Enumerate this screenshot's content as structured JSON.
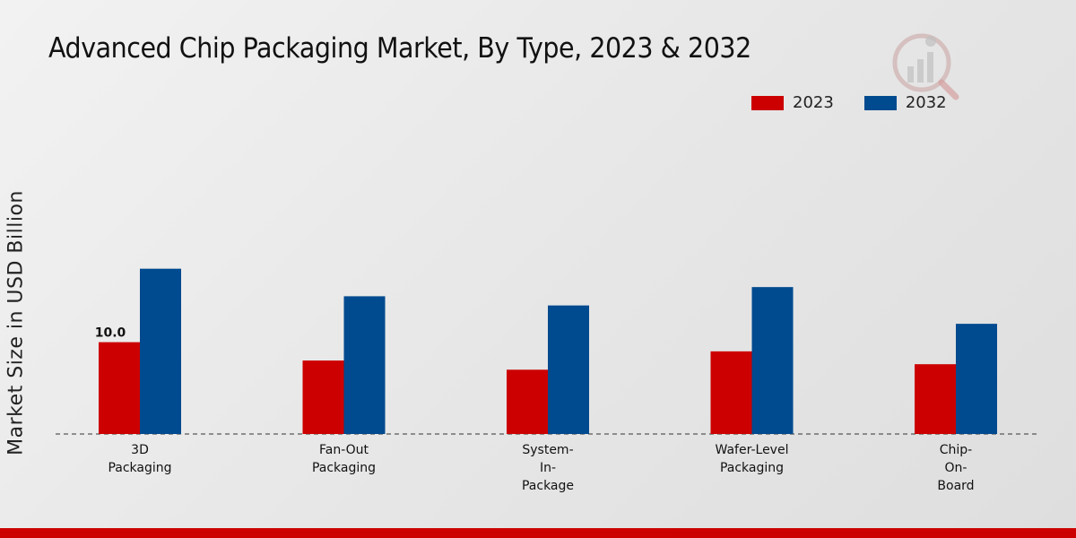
{
  "chart_data": {
    "type": "bar",
    "title": "Advanced Chip Packaging Market, By Type, 2023 & 2032",
    "xlabel": "",
    "ylabel": "Market Size in USD Billion",
    "categories": [
      "3D Packaging",
      "Fan-Out Packaging",
      "System-In-Package",
      "Wafer-Level Packaging",
      "Chip-On-Board"
    ],
    "category_lines": [
      [
        "3D",
        "Packaging"
      ],
      [
        "Fan-Out",
        "Packaging"
      ],
      [
        "System-",
        "In-",
        "Package"
      ],
      [
        "Wafer-Level",
        "Packaging"
      ],
      [
        "Chip-",
        "On-",
        "Board"
      ]
    ],
    "series": [
      {
        "name": "2023",
        "color": "#cc0000",
        "values": [
          10.0,
          8.0,
          7.0,
          9.0,
          7.6
        ]
      },
      {
        "name": "2032",
        "color": "#004a8f",
        "values": [
          18.0,
          15.0,
          14.0,
          16.0,
          12.0
        ]
      }
    ],
    "data_labels": [
      {
        "series": "2023",
        "category": "3D Packaging",
        "text": "10.0"
      }
    ],
    "ylim": [
      0,
      25
    ],
    "legend_position": "top-right",
    "grid": false
  }
}
